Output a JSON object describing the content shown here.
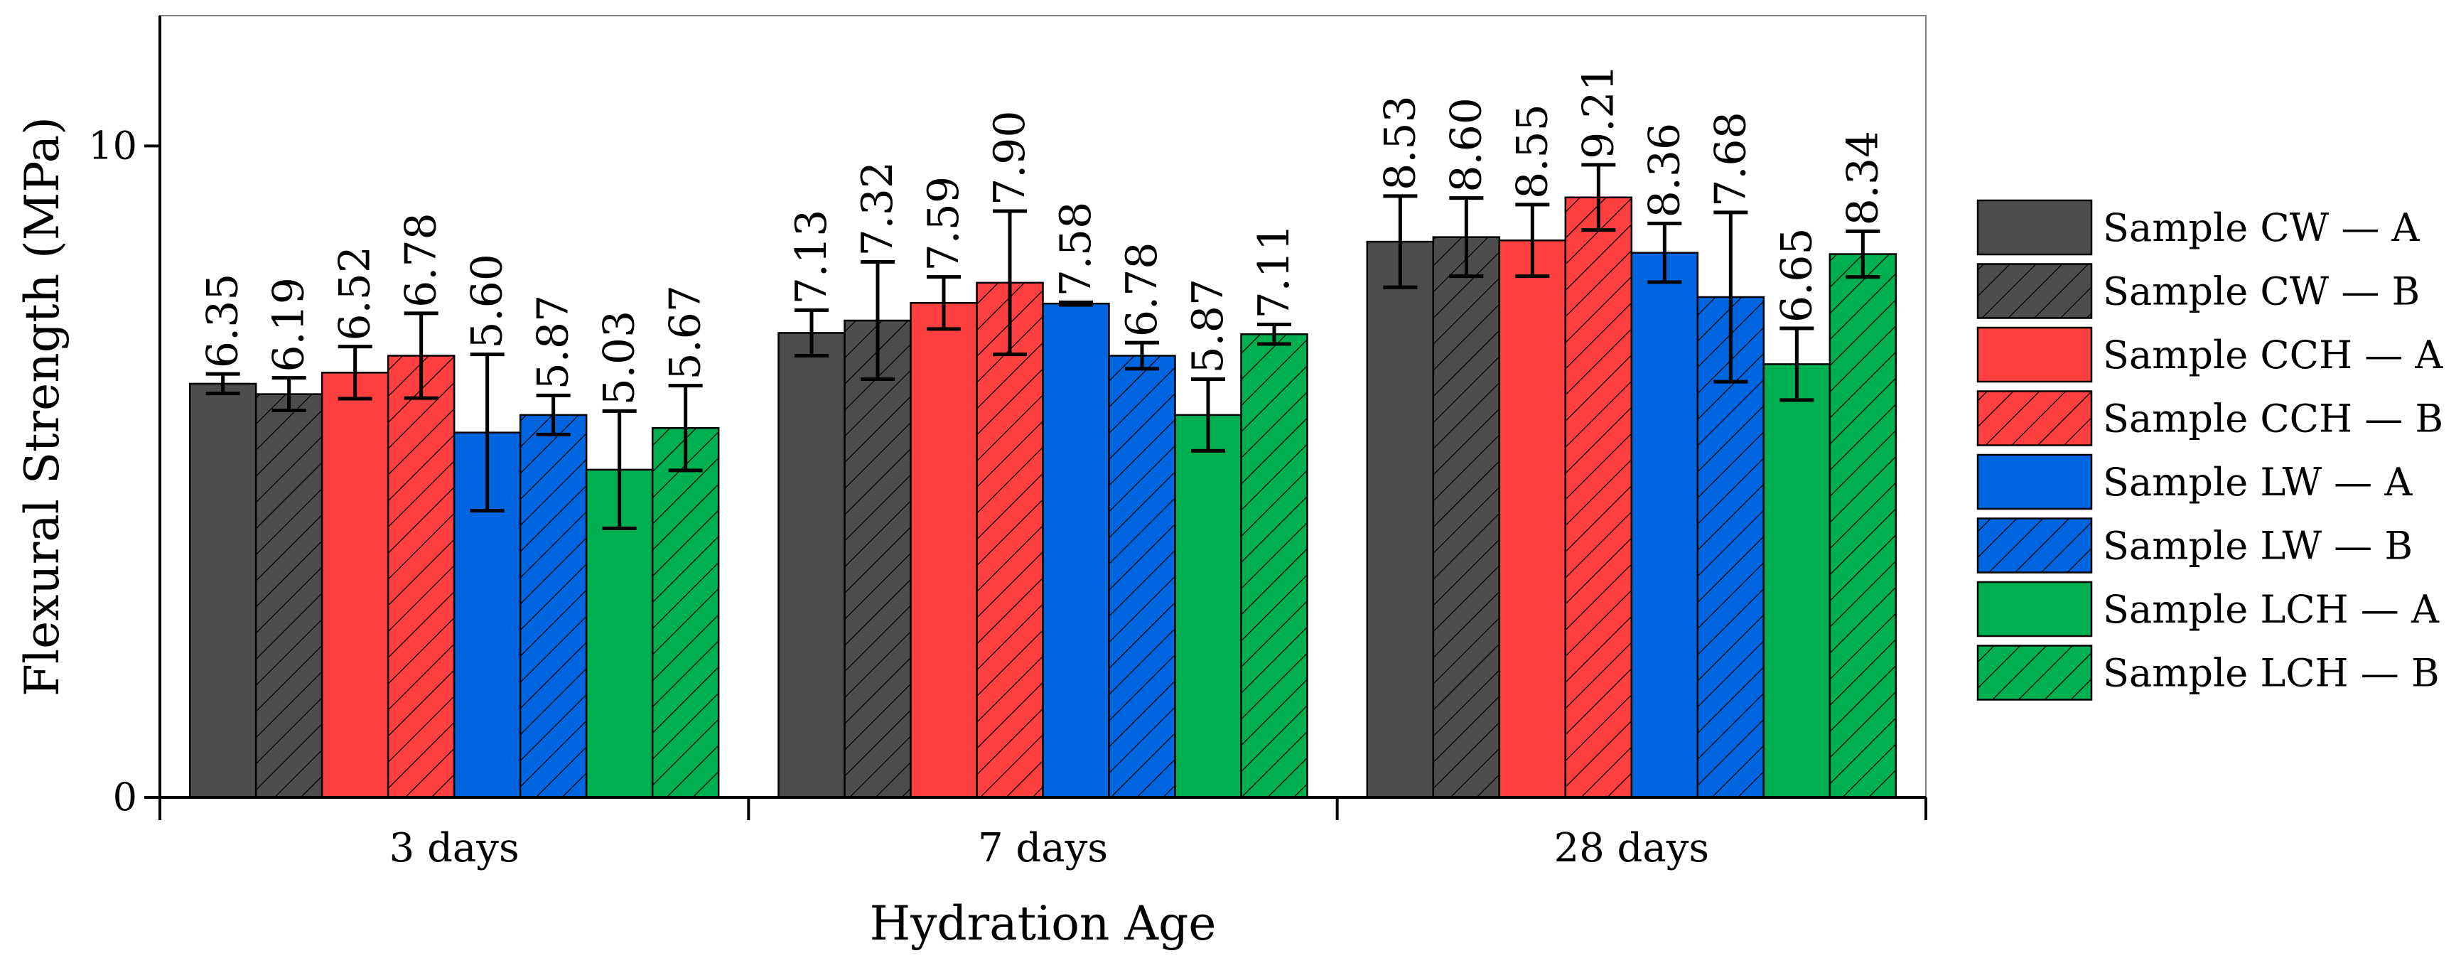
{
  "chart_data": {
    "type": "bar",
    "xlabel": "Hydration Age",
    "ylabel": "Flexural Strength (MPa)",
    "ylim": [
      0,
      12
    ],
    "yticks": [
      0,
      10
    ],
    "categories": [
      "3 days",
      "7 days",
      "28 days"
    ],
    "legend_position": "right",
    "series": [
      {
        "name": "Sample CW — A",
        "color": "#4d4d4d",
        "hatch": false,
        "values": [
          6.35,
          7.13,
          8.53
        ],
        "errors": [
          0.15,
          0.35,
          0.7
        ],
        "labels": [
          "6.35",
          "7.13",
          "8.53"
        ]
      },
      {
        "name": "Sample CW — B",
        "color": "#4d4d4d",
        "hatch": true,
        "values": [
          6.19,
          7.32,
          8.6
        ],
        "errors": [
          0.25,
          0.9,
          0.6
        ],
        "labels": [
          "6.19",
          "7.32",
          "8.60"
        ]
      },
      {
        "name": "Sample CCH — A",
        "color": "#ff4040",
        "hatch": false,
        "values": [
          6.52,
          7.59,
          8.55
        ],
        "errors": [
          0.4,
          0.4,
          0.55
        ],
        "labels": [
          "6.52",
          "7.59",
          "8.55"
        ]
      },
      {
        "name": "Sample CCH — B",
        "color": "#ff4040",
        "hatch": true,
        "values": [
          6.78,
          7.9,
          9.21
        ],
        "errors": [
          0.65,
          1.1,
          0.5
        ],
        "labels": [
          "6.78",
          "7.90",
          "9.21"
        ]
      },
      {
        "name": "Sample LW — A",
        "color": "#0066e0",
        "hatch": false,
        "values": [
          5.6,
          7.58,
          8.36
        ],
        "errors": [
          1.2,
          0.02,
          0.45
        ],
        "labels": [
          "5.60",
          "7.58",
          "8.36"
        ]
      },
      {
        "name": "Sample LW — B",
        "color": "#0066e0",
        "hatch": true,
        "values": [
          5.87,
          6.78,
          7.68
        ],
        "errors": [
          0.3,
          0.2,
          1.3
        ],
        "labels": [
          "5.87",
          "6.78",
          "7.68"
        ]
      },
      {
        "name": "Sample LCH — A",
        "color": "#00b050",
        "hatch": false,
        "values": [
          5.03,
          5.87,
          6.65
        ],
        "errors": [
          0.9,
          0.55,
          0.55
        ],
        "labels": [
          "5.03",
          "5.87",
          "6.65"
        ]
      },
      {
        "name": "Sample LCH — B",
        "color": "#00b050",
        "hatch": true,
        "values": [
          5.67,
          7.11,
          8.34
        ],
        "errors": [
          0.65,
          0.15,
          0.35
        ],
        "labels": [
          "5.67",
          "7.11",
          "8.34"
        ]
      }
    ]
  }
}
